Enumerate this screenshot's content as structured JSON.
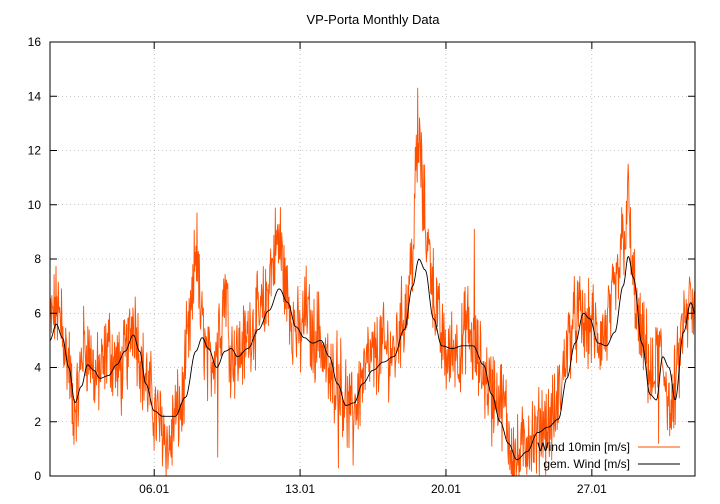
{
  "chart_data": {
    "type": "line",
    "title": "VP-Porta Monthly Data",
    "xlabel": "",
    "ylabel": "",
    "ylim": [
      0,
      16
    ],
    "yticks": [
      0,
      2,
      4,
      6,
      8,
      10,
      12,
      14,
      16
    ],
    "xlim_days": [
      1.0,
      31.95
    ],
    "xticks": [
      {
        "label": "06.01",
        "day": 6
      },
      {
        "label": "13.01",
        "day": 13
      },
      {
        "label": "20.01",
        "day": 20
      },
      {
        "label": "27.01",
        "day": 27
      }
    ],
    "grid": true,
    "legend_position": "bottom-right",
    "series": [
      {
        "name": "Wind 10min [m/s]",
        "color": "#ff5000",
        "style": "noisy",
        "points": [
          [
            1.0,
            5.6
          ],
          [
            1.3,
            6.2
          ],
          [
            1.6,
            5.2
          ],
          [
            1.9,
            4.2
          ],
          [
            2.1,
            2.5
          ],
          [
            2.3,
            2.8
          ],
          [
            2.6,
            4.8
          ],
          [
            2.9,
            4.5
          ],
          [
            3.2,
            3.6
          ],
          [
            3.5,
            3.9
          ],
          [
            3.8,
            4.8
          ],
          [
            4.1,
            4.2
          ],
          [
            4.4,
            3.8
          ],
          [
            4.7,
            4.6
          ],
          [
            5.0,
            5.9
          ],
          [
            5.2,
            5.0
          ],
          [
            5.5,
            3.8
          ],
          [
            5.8,
            3.0
          ],
          [
            6.1,
            2.2
          ],
          [
            6.4,
            1.8
          ],
          [
            6.7,
            1.0
          ],
          [
            7.0,
            2.2
          ],
          [
            7.3,
            2.5
          ],
          [
            7.6,
            4.8
          ],
          [
            7.8,
            6.0
          ],
          [
            8.0,
            8.3
          ],
          [
            8.3,
            5.5
          ],
          [
            8.6,
            4.0
          ],
          [
            8.9,
            4.6
          ],
          [
            9.2,
            5.8
          ],
          [
            9.4,
            7.0
          ],
          [
            9.7,
            4.6
          ],
          [
            10.0,
            4.5
          ],
          [
            10.3,
            4.8
          ],
          [
            10.7,
            5.6
          ],
          [
            11.0,
            5.8
          ],
          [
            11.3,
            6.2
          ],
          [
            11.6,
            7.6
          ],
          [
            11.9,
            8.6
          ],
          [
            12.1,
            8.0
          ],
          [
            12.4,
            6.6
          ],
          [
            12.7,
            5.6
          ],
          [
            13.0,
            5.1
          ],
          [
            13.3,
            6.2
          ],
          [
            13.6,
            5.0
          ],
          [
            13.9,
            5.4
          ],
          [
            14.2,
            4.2
          ],
          [
            14.5,
            3.4
          ],
          [
            14.8,
            4.0
          ],
          [
            15.1,
            3.0
          ],
          [
            15.4,
            2.2
          ],
          [
            15.7,
            2.8
          ],
          [
            16.0,
            3.6
          ],
          [
            16.3,
            4.2
          ],
          [
            16.6,
            4.3
          ],
          [
            16.9,
            4.8
          ],
          [
            17.2,
            4.6
          ],
          [
            17.5,
            4.5
          ],
          [
            17.8,
            5.6
          ],
          [
            18.1,
            6.2
          ],
          [
            18.4,
            8.2
          ],
          [
            18.6,
            11.6
          ],
          [
            18.75,
            12.2
          ],
          [
            18.9,
            10.0
          ],
          [
            19.2,
            8.2
          ],
          [
            19.5,
            6.4
          ],
          [
            19.8,
            5.0
          ],
          [
            20.1,
            4.3
          ],
          [
            20.4,
            4.8
          ],
          [
            20.7,
            4.6
          ],
          [
            21.0,
            5.6
          ],
          [
            21.3,
            4.7
          ],
          [
            21.6,
            4.2
          ],
          [
            21.9,
            3.6
          ],
          [
            22.2,
            3.2
          ],
          [
            22.5,
            3.0
          ],
          [
            22.8,
            2.5
          ],
          [
            23.1,
            1.2
          ],
          [
            23.4,
            0.6
          ],
          [
            23.7,
            1.0
          ],
          [
            24.0,
            1.6
          ],
          [
            24.3,
            1.3
          ],
          [
            24.6,
            2.0
          ],
          [
            24.9,
            1.8
          ],
          [
            25.2,
            2.2
          ],
          [
            25.5,
            3.2
          ],
          [
            25.8,
            4.8
          ],
          [
            26.1,
            5.6
          ],
          [
            26.4,
            5.9
          ],
          [
            26.7,
            5.4
          ],
          [
            27.0,
            5.6
          ],
          [
            27.3,
            5.0
          ],
          [
            27.6,
            5.2
          ],
          [
            27.9,
            6.0
          ],
          [
            28.2,
            7.0
          ],
          [
            28.5,
            8.8
          ],
          [
            28.75,
            9.6
          ],
          [
            29.0,
            7.0
          ],
          [
            29.3,
            5.2
          ],
          [
            29.6,
            4.5
          ],
          [
            29.9,
            3.4
          ],
          [
            30.2,
            4.6
          ],
          [
            30.5,
            3.8
          ],
          [
            30.8,
            2.2
          ],
          [
            31.1,
            3.8
          ],
          [
            31.4,
            5.6
          ],
          [
            31.7,
            6.0
          ],
          [
            31.95,
            5.8
          ]
        ],
        "peaks": [
          [
            1.55,
            6.9
          ],
          [
            8.05,
            9.7
          ],
          [
            12.05,
            9.9
          ],
          [
            18.65,
            14.3
          ],
          [
            18.85,
            12.1
          ],
          [
            21.35,
            9.1
          ],
          [
            28.75,
            11.5
          ],
          [
            5.1,
            6.6
          ],
          [
            31.7,
            7.2
          ]
        ],
        "troughs": [
          [
            2.1,
            1.5
          ],
          [
            6.85,
            0.4
          ],
          [
            9.05,
            0.7
          ],
          [
            14.85,
            0.3
          ],
          [
            15.55,
            0.4
          ],
          [
            22.2,
            1.1
          ],
          [
            23.5,
            0.0
          ],
          [
            24.35,
            0.1
          ],
          [
            30.2,
            1.2
          ]
        ]
      },
      {
        "name": "gem. Wind [m/s]",
        "color": "#000000",
        "style": "smooth",
        "points": [
          [
            1.0,
            5.0
          ],
          [
            1.3,
            5.6
          ],
          [
            1.6,
            5.1
          ],
          [
            1.9,
            4.0
          ],
          [
            2.2,
            2.7
          ],
          [
            2.5,
            3.3
          ],
          [
            2.8,
            4.1
          ],
          [
            3.1,
            3.9
          ],
          [
            3.4,
            3.6
          ],
          [
            3.8,
            3.7
          ],
          [
            4.2,
            4.1
          ],
          [
            4.6,
            4.6
          ],
          [
            5.0,
            5.2
          ],
          [
            5.3,
            4.6
          ],
          [
            5.6,
            3.4
          ],
          [
            6.0,
            2.4
          ],
          [
            6.4,
            2.2
          ],
          [
            7.0,
            2.2
          ],
          [
            7.5,
            2.9
          ],
          [
            8.0,
            4.6
          ],
          [
            8.3,
            5.1
          ],
          [
            8.6,
            4.7
          ],
          [
            9.0,
            4.0
          ],
          [
            9.4,
            4.6
          ],
          [
            9.7,
            4.7
          ],
          [
            10.0,
            4.4
          ],
          [
            10.5,
            4.7
          ],
          [
            11.0,
            5.4
          ],
          [
            11.5,
            6.1
          ],
          [
            12.0,
            6.9
          ],
          [
            12.4,
            6.4
          ],
          [
            12.8,
            5.5
          ],
          [
            13.2,
            5.1
          ],
          [
            13.6,
            4.9
          ],
          [
            14.0,
            5.0
          ],
          [
            14.4,
            4.4
          ],
          [
            14.8,
            3.4
          ],
          [
            15.2,
            2.6
          ],
          [
            15.6,
            2.7
          ],
          [
            16.0,
            3.4
          ],
          [
            16.5,
            3.9
          ],
          [
            17.0,
            4.2
          ],
          [
            17.5,
            4.4
          ],
          [
            18.0,
            5.4
          ],
          [
            18.4,
            7.0
          ],
          [
            18.7,
            8.0
          ],
          [
            19.0,
            7.6
          ],
          [
            19.4,
            5.8
          ],
          [
            19.8,
            4.8
          ],
          [
            20.3,
            4.7
          ],
          [
            20.8,
            4.8
          ],
          [
            21.3,
            4.8
          ],
          [
            21.8,
            4.1
          ],
          [
            22.2,
            3.0
          ],
          [
            22.6,
            2.0
          ],
          [
            23.0,
            1.2
          ],
          [
            23.4,
            0.6
          ],
          [
            23.9,
            0.9
          ],
          [
            24.4,
            1.6
          ],
          [
            24.9,
            1.8
          ],
          [
            25.4,
            2.1
          ],
          [
            25.8,
            3.6
          ],
          [
            26.2,
            4.9
          ],
          [
            26.6,
            6.0
          ],
          [
            26.9,
            5.8
          ],
          [
            27.3,
            4.9
          ],
          [
            27.7,
            4.8
          ],
          [
            28.1,
            5.3
          ],
          [
            28.5,
            7.0
          ],
          [
            28.75,
            8.1
          ],
          [
            29.0,
            7.3
          ],
          [
            29.4,
            4.9
          ],
          [
            29.8,
            3.0
          ],
          [
            30.1,
            2.8
          ],
          [
            30.4,
            4.4
          ],
          [
            30.7,
            4.0
          ],
          [
            31.0,
            2.8
          ],
          [
            31.4,
            5.3
          ],
          [
            31.75,
            6.4
          ],
          [
            31.95,
            6.0
          ]
        ]
      }
    ]
  }
}
